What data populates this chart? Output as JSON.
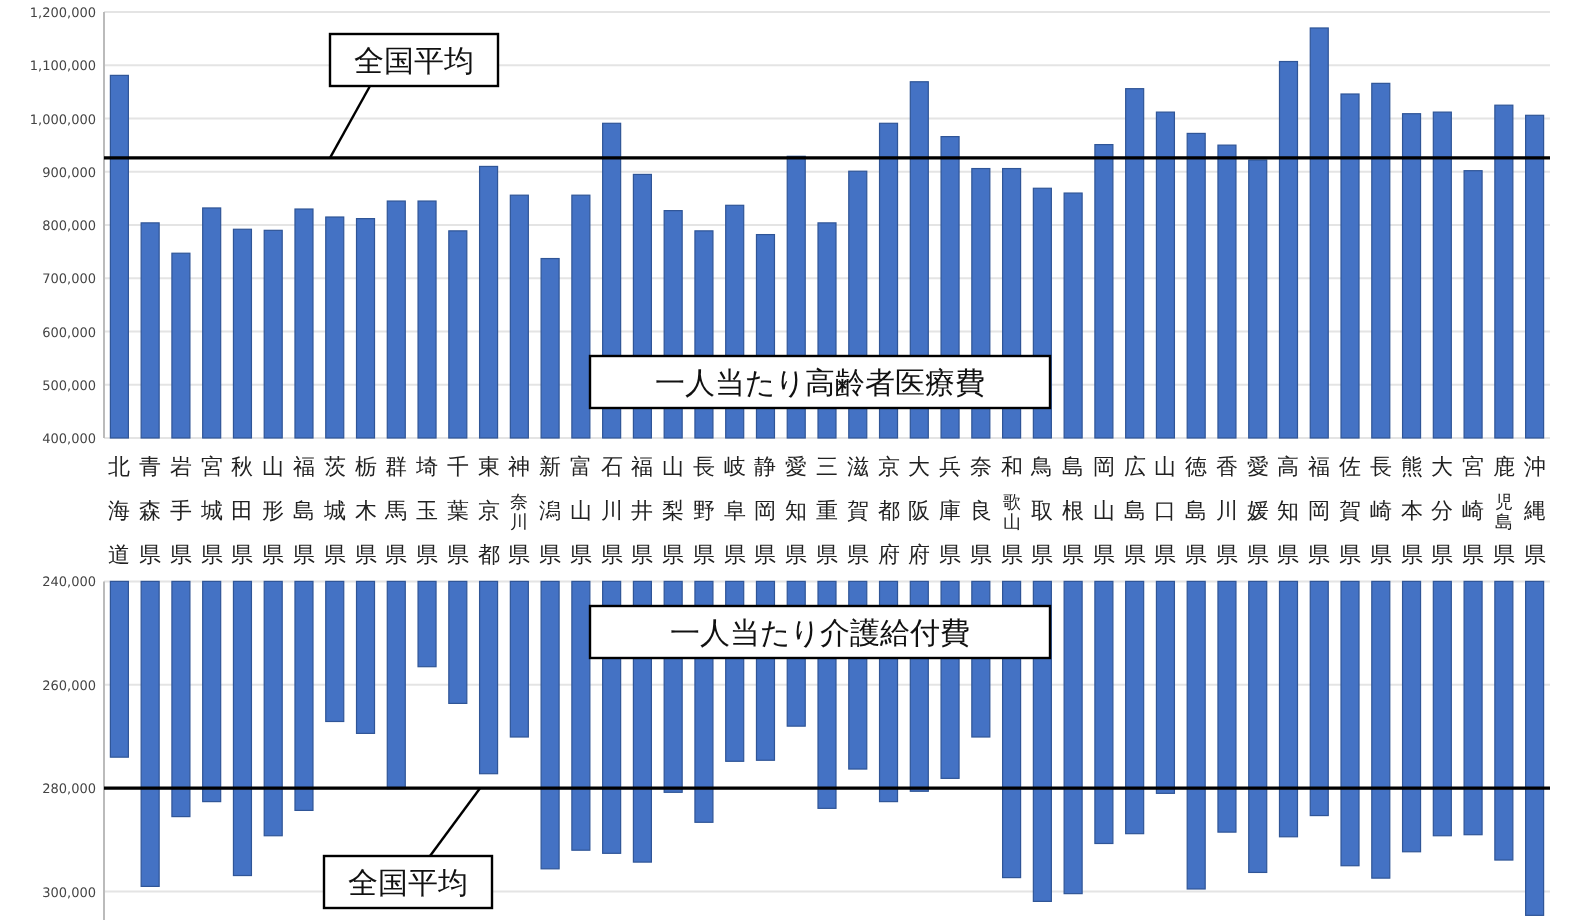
{
  "chart_data": [
    {
      "type": "bar",
      "annotations": [
        "一人当たり高齢者医療費"
      ],
      "categories": [
        "北海道",
        "青森県",
        "岩手県",
        "宮城県",
        "秋田県",
        "山形県",
        "福島県",
        "茨城県",
        "栃木県",
        "群馬県",
        "埼玉県",
        "千葉県",
        "東京都",
        "神奈川県",
        "新潟県",
        "富山県",
        "石川県",
        "福井県",
        "山梨県",
        "長野県",
        "岐阜県",
        "静岡県",
        "愛知県",
        "三重県",
        "滋賀県",
        "京都府",
        "大阪府",
        "兵庫県",
        "奈良県",
        "和歌山県",
        "鳥取県",
        "島根県",
        "岡山県",
        "広島県",
        "山口県",
        "徳島県",
        "香川県",
        "愛媛県",
        "高知県",
        "福岡県",
        "佐賀県",
        "長崎県",
        "熊本県",
        "大分県",
        "宮崎県",
        "鹿児島県",
        "沖縄県"
      ],
      "values": [
        1081000,
        804000,
        747000,
        832000,
        792000,
        790000,
        830000,
        815000,
        812000,
        845000,
        845000,
        789000,
        910000,
        856000,
        737000,
        856000,
        991000,
        895000,
        827000,
        789000,
        837000,
        782000,
        929000,
        804000,
        901000,
        991000,
        1069000,
        966000,
        906000,
        906000,
        869000,
        860000,
        951000,
        1056000,
        1012000,
        972000,
        950000,
        922000,
        1107000,
        1170000,
        1046000,
        1066000,
        1009000,
        1012000,
        902000,
        1025000,
        1006000
      ],
      "color": "#4472c4",
      "ylim": [
        400000,
        1200000
      ],
      "yticks": [
        {
          "value": 400000,
          "label": "400,000"
        },
        {
          "value": 500000,
          "label": "500,000"
        },
        {
          "value": 600000,
          "label": "600,000"
        },
        {
          "value": 700000,
          "label": "700,000"
        },
        {
          "value": 800000,
          "label": "800,000"
        },
        {
          "value": 900000,
          "label": "900,000"
        },
        {
          "value": 1000000,
          "label": "1,000,000"
        },
        {
          "value": 1100000,
          "label": "1,100,000"
        },
        {
          "value": 1200000,
          "label": "1,200,000"
        }
      ],
      "grid": "y",
      "ref_lines": [
        {
          "axis": "y",
          "value": 926000,
          "label": "全国平均",
          "color": "#000000"
        }
      ]
    },
    {
      "type": "bar",
      "annotations": [
        "一人当たり介護給付費"
      ],
      "categories": [
        "北海道",
        "青森県",
        "岩手県",
        "宮城県",
        "秋田県",
        "山形県",
        "福島県",
        "茨城県",
        "栃木県",
        "群馬県",
        "埼玉県",
        "千葉県",
        "東京都",
        "神奈川県",
        "新潟県",
        "富山県",
        "石川県",
        "福井県",
        "山梨県",
        "長野県",
        "岐阜県",
        "静岡県",
        "愛知県",
        "三重県",
        "滋賀県",
        "京都府",
        "大阪府",
        "兵庫県",
        "奈良県",
        "和歌山県",
        "鳥取県",
        "島根県",
        "岡山県",
        "広島県",
        "山口県",
        "徳島県",
        "香川県",
        "愛媛県",
        "高知県",
        "福岡県",
        "佐賀県",
        "長崎県",
        "熊本県",
        "大分県",
        "宮崎県",
        "鹿児島県",
        "沖縄県"
      ],
      "values": [
        274000,
        299000,
        285500,
        282600,
        296900,
        289200,
        284300,
        267100,
        269400,
        280100,
        256500,
        263600,
        277200,
        270100,
        295600,
        292000,
        292600,
        294300,
        280800,
        286600,
        274800,
        274600,
        268000,
        283900,
        276300,
        282600,
        280600,
        278100,
        270100,
        297300,
        301900,
        300400,
        290700,
        288800,
        281000,
        299500,
        288500,
        296300,
        289400,
        285300,
        295000,
        297400,
        292300,
        289200,
        289000,
        293900,
        304600
      ],
      "color": "#4472c4",
      "ylim": [
        305500,
        240000
      ],
      "yticks": [
        {
          "value": 240000,
          "label": "240,000"
        },
        {
          "value": 260000,
          "label": "260,000"
        },
        {
          "value": 280000,
          "label": "280,000"
        },
        {
          "value": 300000,
          "label": "300,000"
        }
      ],
      "grid": "y",
      "tick_labels": "y",
      "ref_lines": [
        {
          "axis": "y",
          "value": 280000,
          "label": "全国平均",
          "color": "#000000"
        }
      ]
    }
  ]
}
